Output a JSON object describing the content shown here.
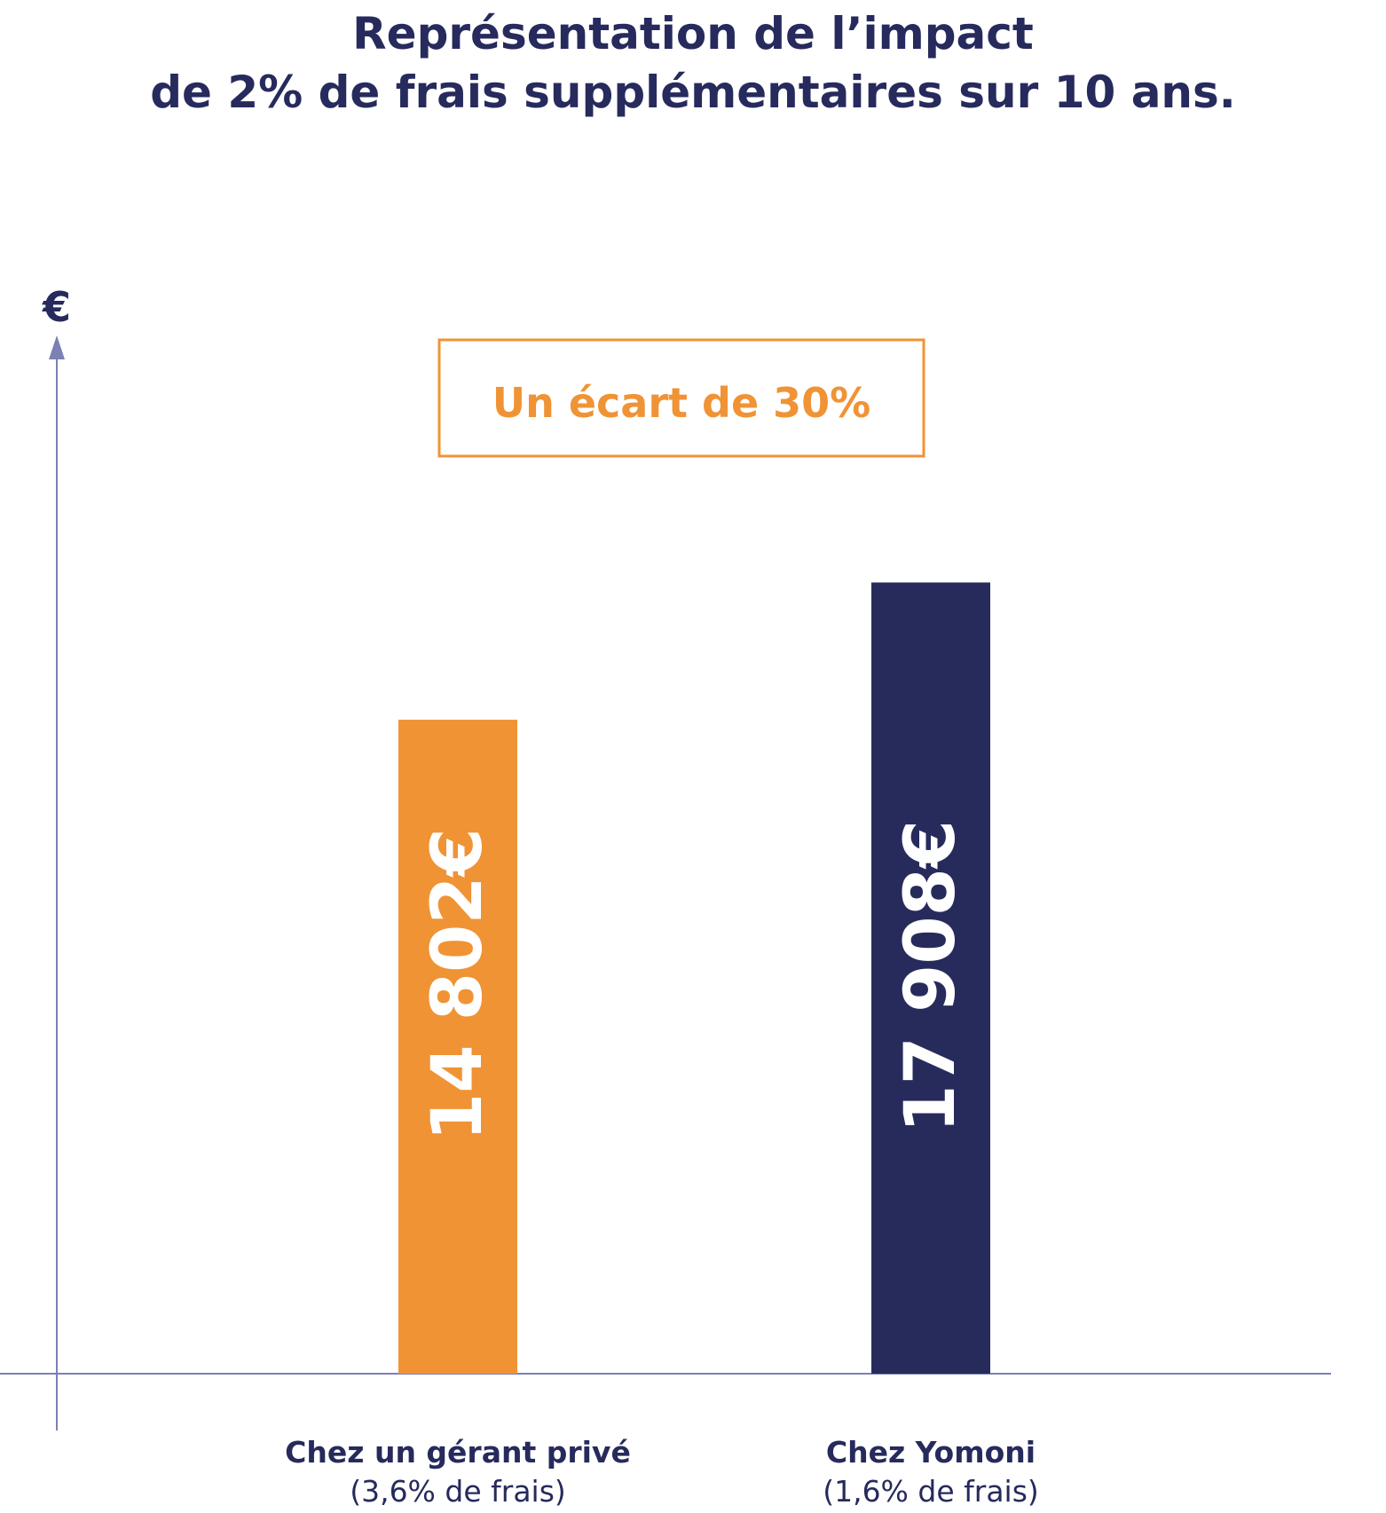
{
  "chart_data": {
    "type": "bar",
    "title_lines": [
      "Représentation de l’impact",
      "de 2% de frais supplémentaires sur 10 ans."
    ],
    "y_unit": "€",
    "annotation": "Un écart de 30%",
    "categories": [
      "Chez un gérant privé",
      "Chez Yomoni"
    ],
    "category_subtitles": [
      "(3,6% de frais)",
      "(1,6% de frais)"
    ],
    "values": [
      14802,
      17908
    ],
    "value_labels": [
      "14 802€",
      "17 908€"
    ],
    "ylim": [
      0,
      23500
    ],
    "grid": false
  },
  "colors": {
    "title": "#262a5c",
    "axis": "#7c80b4",
    "accent_orange": "#f09335",
    "accent_navy": "#272b5c",
    "bar_label": "#ffffff"
  }
}
